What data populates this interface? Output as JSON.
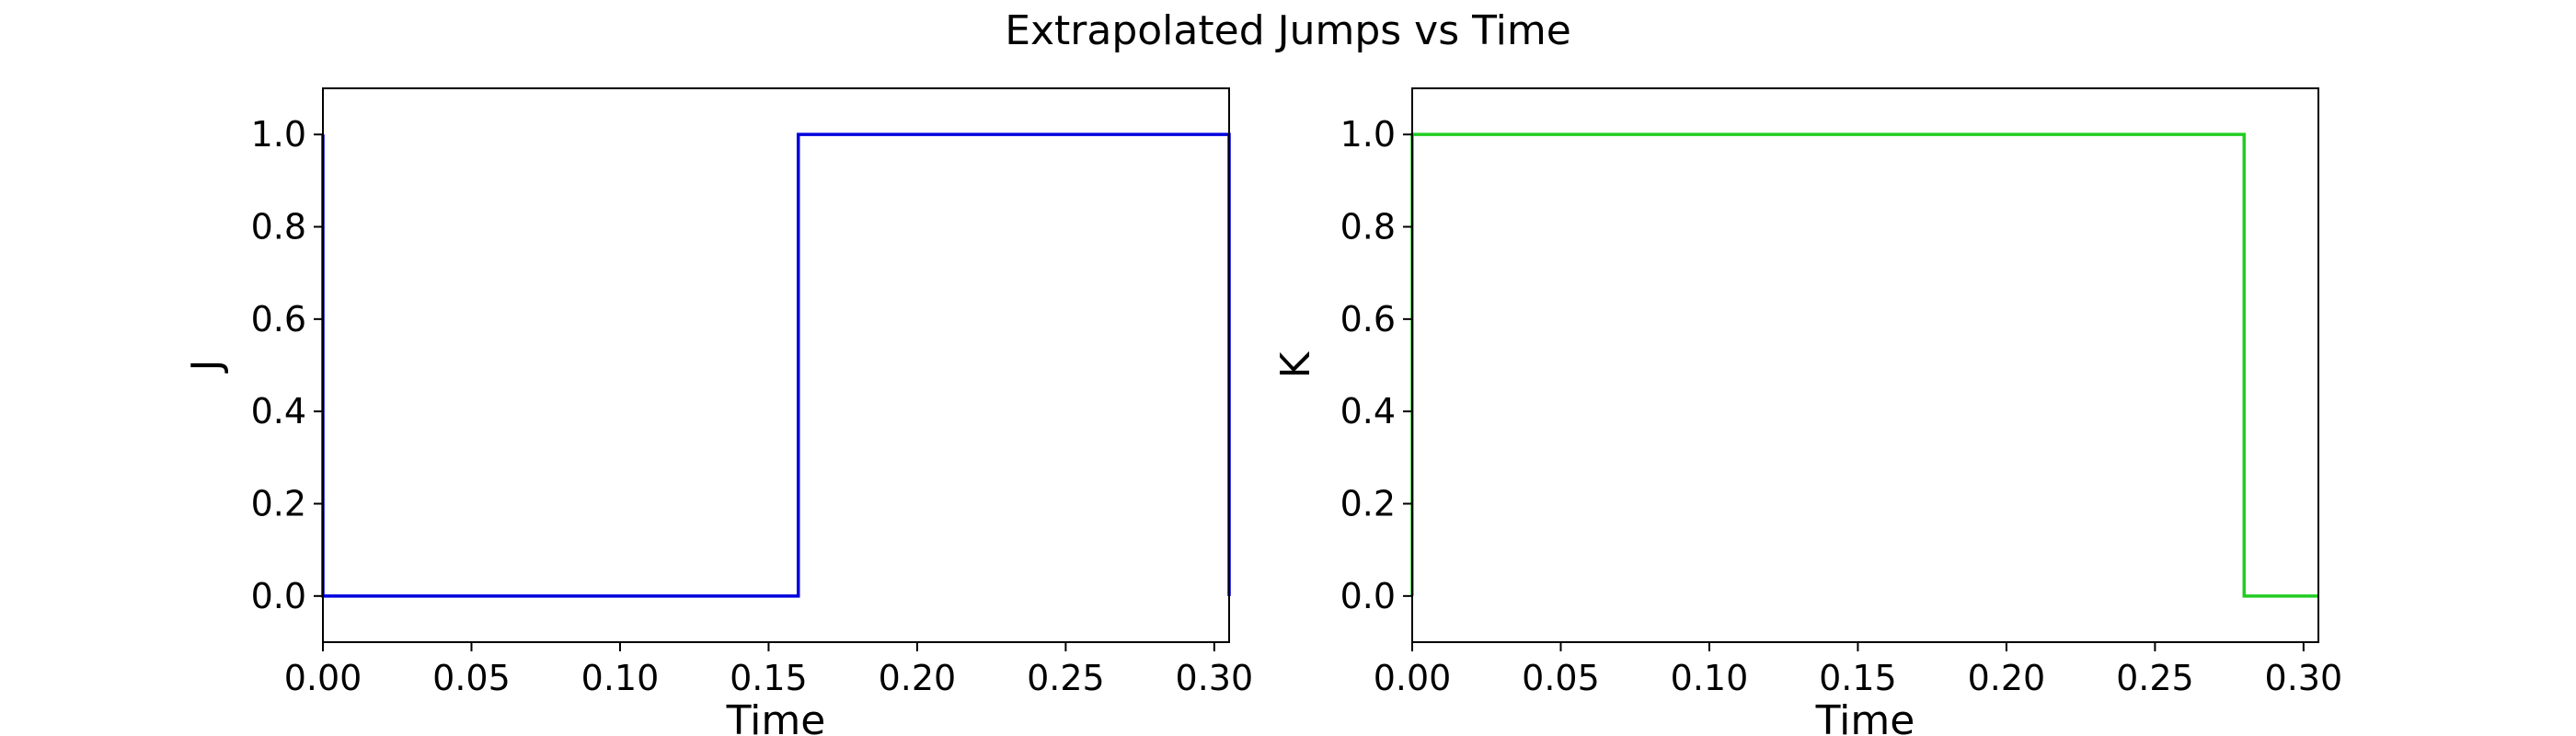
{
  "figure": {
    "title": "Extrapolated Jumps vs Time"
  },
  "chart_data": [
    {
      "type": "line",
      "step": true,
      "title": "",
      "xlabel": "Time",
      "ylabel": "J",
      "xlim": [
        0.0,
        0.305
      ],
      "ylim": [
        -0.1,
        1.1
      ],
      "xticks": [
        0.0,
        0.05,
        0.1,
        0.15,
        0.2,
        0.25,
        0.3
      ],
      "xtick_labels": [
        "0.00",
        "0.05",
        "0.10",
        "0.15",
        "0.20",
        "0.25",
        "0.30"
      ],
      "yticks": [
        0.0,
        0.2,
        0.4,
        0.6,
        0.8,
        1.0
      ],
      "ytick_labels": [
        "0.0",
        "0.2",
        "0.4",
        "0.6",
        "0.8",
        "1.0"
      ],
      "grid": false,
      "series": [
        {
          "color": "#0000dd",
          "x": [
            0.0,
            0.0,
            0.16,
            0.16,
            0.305,
            0.305
          ],
          "y": [
            1.0,
            0.0,
            0.0,
            1.0,
            1.0,
            0.0
          ]
        }
      ]
    },
    {
      "type": "line",
      "step": true,
      "title": "",
      "xlabel": "Time",
      "ylabel": "K",
      "xlim": [
        0.0,
        0.305
      ],
      "ylim": [
        -0.1,
        1.1
      ],
      "xticks": [
        0.0,
        0.05,
        0.1,
        0.15,
        0.2,
        0.25,
        0.3
      ],
      "xtick_labels": [
        "0.00",
        "0.05",
        "0.10",
        "0.15",
        "0.20",
        "0.25",
        "0.30"
      ],
      "yticks": [
        0.0,
        0.2,
        0.4,
        0.6,
        0.8,
        1.0
      ],
      "ytick_labels": [
        "0.0",
        "0.2",
        "0.4",
        "0.6",
        "0.8",
        "1.0"
      ],
      "grid": false,
      "series": [
        {
          "color": "#22cc22",
          "x": [
            0.0,
            0.0,
            0.28,
            0.28,
            0.305
          ],
          "y": [
            0.0,
            1.0,
            1.0,
            0.0,
            0.0
          ]
        }
      ]
    }
  ]
}
